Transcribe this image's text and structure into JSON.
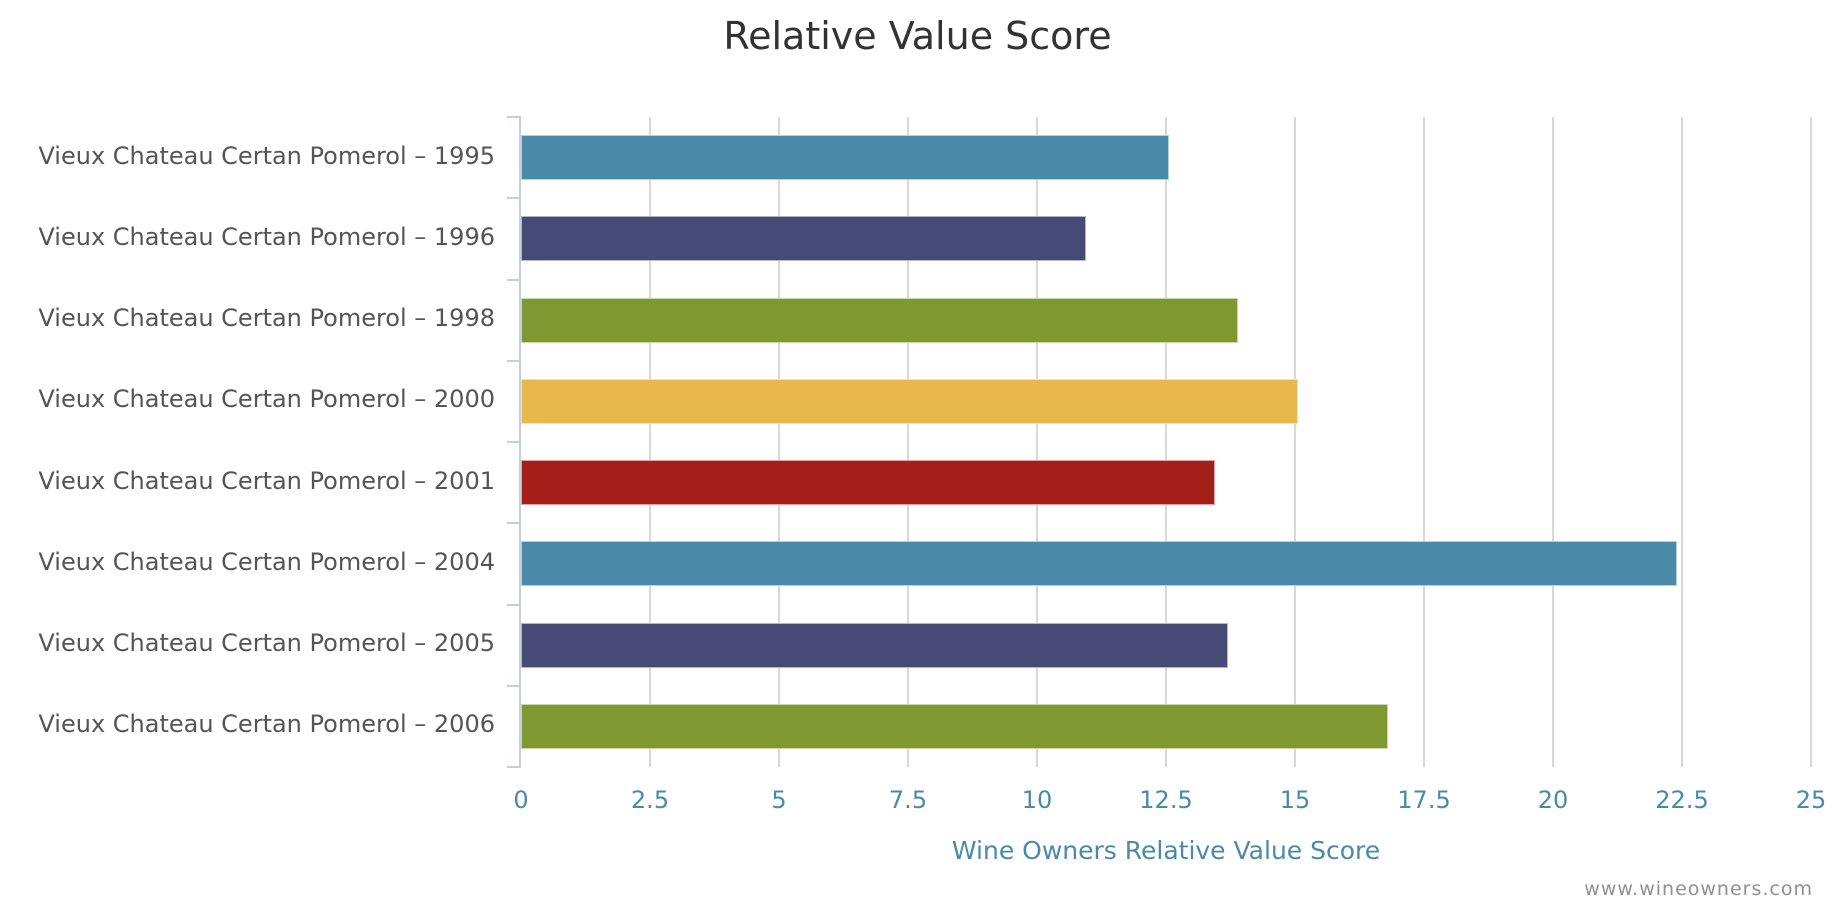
{
  "chart_data": {
    "type": "bar",
    "orientation": "horizontal",
    "title": "Relative Value Score",
    "xlabel": "Wine Owners Relative Value Score",
    "ylabel": "",
    "xlim": [
      0,
      25
    ],
    "xticks": [
      "0",
      "2.5",
      "5",
      "7.5",
      "10",
      "12.5",
      "15",
      "17.5",
      "20",
      "22.5",
      "25"
    ],
    "grid": true,
    "legend": "none",
    "categories": [
      "Vieux Chateau Certan Pomerol - 1995",
      "Vieux Chateau Certan Pomerol - 1996",
      "Vieux Chateau Certan Pomerol - 1998",
      "Vieux Chateau Certan Pomerol - 2000",
      "Vieux Chateau Certan Pomerol - 2001",
      "Vieux Chateau Certan Pomerol - 2004",
      "Vieux Chateau Certan Pomerol - 2005",
      "Vieux Chateau Certan Pomerol - 2006"
    ],
    "values": [
      12.55,
      10.95,
      13.9,
      15.05,
      13.45,
      22.4,
      13.7,
      16.8
    ],
    "colors": [
      "#4a8aa8",
      "#464a75",
      "#7f982f",
      "#e7b94c",
      "#a51f1a",
      "#4a8aa8",
      "#464a75",
      "#7f982f"
    ]
  },
  "chart": {
    "title": "Relative Value Score",
    "xaxis_title": "Wine Owners Relative Value Score",
    "credit": "www.wineowners.com",
    "xticks": [
      "0",
      "2.5",
      "5",
      "7.5",
      "10",
      "12.5",
      "15",
      "17.5",
      "20",
      "22.5",
      "25"
    ],
    "labels": [
      "Vieux Chateau Certan Pomerol – 1995",
      "Vieux Chateau Certan Pomerol – 1996",
      "Vieux Chateau Certan Pomerol – 1998",
      "Vieux Chateau Certan Pomerol – 2000",
      "Vieux Chateau Certan Pomerol – 2001",
      "Vieux Chateau Certan Pomerol – 2004",
      "Vieux Chateau Certan Pomerol – 2005",
      "Vieux Chateau Certan Pomerol – 2006"
    ]
  }
}
